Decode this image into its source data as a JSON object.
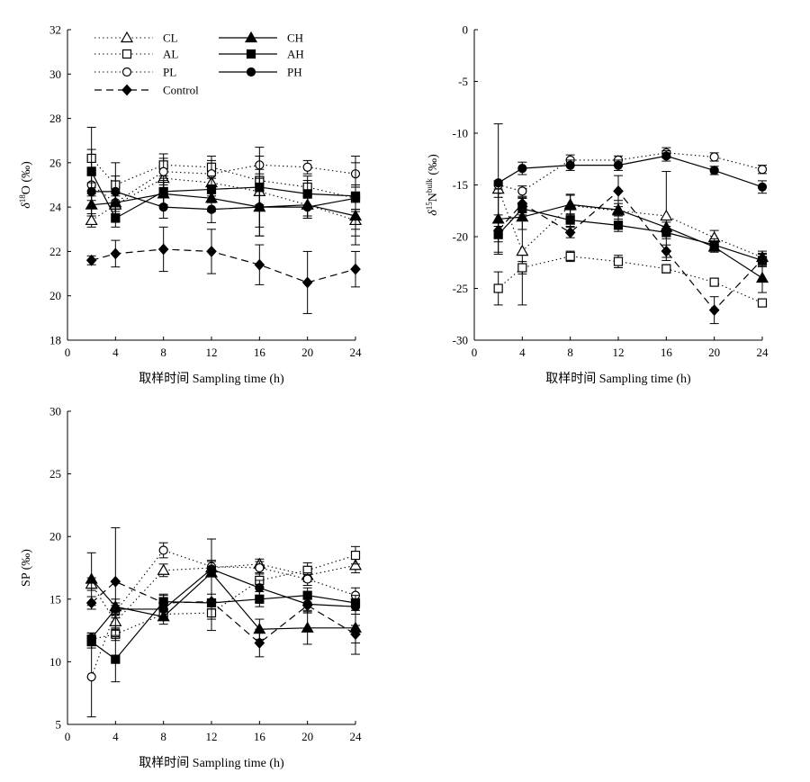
{
  "chart_data": [
    {
      "type": "line",
      "panel": "top-left",
      "ylabel": "δ18O (‰)",
      "xlabel": "取样时间 Sampling time (h)",
      "xlim": [
        0,
        24
      ],
      "ylim": [
        18,
        32
      ],
      "xticks": [
        0,
        4,
        8,
        12,
        16,
        20,
        24
      ],
      "yticks": [
        18,
        20,
        22,
        24,
        26,
        28,
        30,
        32
      ],
      "legend": {
        "placement": "top-left",
        "entries": [
          "CL",
          "AL",
          "PL",
          "Control",
          "CH",
          "AH",
          "PH"
        ]
      },
      "series": [
        {
          "name": "CL",
          "style": "dotted",
          "marker": "triangle-open",
          "x": [
            2,
            4,
            8,
            12,
            16,
            20,
            24
          ],
          "y": [
            23.4,
            24.1,
            25.3,
            25.1,
            24.7,
            24.1,
            23.4
          ],
          "err": [
            0.3,
            0.4,
            0.5,
            0.5,
            0.6,
            0.5,
            0.4
          ]
        },
        {
          "name": "AL",
          "style": "dotted",
          "marker": "square-open",
          "x": [
            2,
            4,
            8,
            12,
            16,
            20,
            24
          ],
          "y": [
            26.2,
            25.0,
            25.9,
            25.8,
            25.2,
            24.9,
            24.4
          ],
          "err": [
            0.4,
            0.4,
            0.5,
            0.5,
            0.5,
            0.5,
            0.5
          ]
        },
        {
          "name": "PL",
          "style": "dotted",
          "marker": "circle-open",
          "x": [
            2,
            4,
            8,
            12,
            16,
            20,
            24
          ],
          "y": [
            25.0,
            24.2,
            25.6,
            25.5,
            25.9,
            25.8,
            25.5
          ],
          "err": [
            0.5,
            0.5,
            0.6,
            0.6,
            0.4,
            0.3,
            0.5
          ]
        },
        {
          "name": "Control",
          "style": "dashed",
          "marker": "diamond-filled",
          "x": [
            2,
            4,
            8,
            12,
            16,
            20,
            24
          ],
          "y": [
            21.6,
            21.9,
            22.1,
            22.0,
            21.4,
            20.6,
            21.2
          ],
          "err": [
            0.2,
            0.6,
            1.0,
            1.0,
            0.9,
            1.4,
            0.8
          ]
        },
        {
          "name": "CH",
          "style": "solid",
          "marker": "triangle-filled",
          "x": [
            2,
            4,
            8,
            12,
            16,
            20,
            24
          ],
          "y": [
            24.1,
            24.2,
            24.6,
            24.4,
            24.0,
            24.1,
            23.6
          ],
          "err": [
            0.5,
            0.4,
            0.6,
            0.6,
            1.3,
            0.6,
            1.3
          ]
        },
        {
          "name": "AH",
          "style": "solid",
          "marker": "square-filled",
          "x": [
            2,
            4,
            8,
            12,
            16,
            20,
            24
          ],
          "y": [
            25.6,
            23.5,
            24.7,
            24.8,
            24.9,
            24.6,
            24.5
          ],
          "err": [
            2.0,
            0.4,
            0.6,
            0.6,
            1.8,
            0.6,
            1.8
          ]
        },
        {
          "name": "PH",
          "style": "solid",
          "marker": "circle-filled",
          "x": [
            2,
            4,
            8,
            12,
            16,
            20,
            24
          ],
          "y": [
            24.7,
            24.7,
            24.0,
            23.9,
            24.0,
            24.0,
            24.4
          ],
          "err": [
            0.4,
            1.3,
            0.5,
            0.6,
            1.3,
            0.5,
            0.5
          ]
        }
      ]
    },
    {
      "type": "line",
      "panel": "top-right",
      "ylabel": "δ15Nbulk (‰)",
      "xlabel": "取样时间 Sampling time (h)",
      "xlim": [
        0,
        24
      ],
      "ylim": [
        -30,
        0
      ],
      "xticks": [
        0,
        4,
        8,
        12,
        16,
        20,
        24
      ],
      "yticks": [
        -30,
        -25,
        -20,
        -15,
        -10,
        -5,
        0
      ],
      "series": [
        {
          "name": "CL",
          "style": "dotted",
          "marker": "triangle-open",
          "x": [
            2,
            4,
            8,
            12,
            16,
            20,
            24
          ],
          "y": [
            -15.4,
            -21.4,
            -17.0,
            -17.5,
            -18.0,
            -20.1,
            -22.0
          ],
          "err": [
            0.8,
            5.2,
            1.0,
            1.0,
            4.3,
            0.7,
            0.6
          ]
        },
        {
          "name": "AL",
          "style": "dotted",
          "marker": "square-open",
          "x": [
            2,
            4,
            8,
            12,
            16,
            20,
            24
          ],
          "y": [
            -25.0,
            -23.0,
            -21.9,
            -22.4,
            -23.1,
            -24.4,
            -26.4
          ],
          "err": [
            1.6,
            0.6,
            0.5,
            0.6,
            0.4,
            0.3,
            0.3
          ]
        },
        {
          "name": "PL",
          "style": "dotted",
          "marker": "circle-open",
          "x": [
            2,
            4,
            8,
            12,
            16,
            20,
            24
          ],
          "y": [
            -15.0,
            -15.6,
            -12.6,
            -12.6,
            -11.9,
            -12.3,
            -13.5
          ],
          "err": [
            0.4,
            0.5,
            0.5,
            0.4,
            0.5,
            0.4,
            0.4
          ]
        },
        {
          "name": "Control",
          "style": "dashed",
          "marker": "diamond-filled",
          "x": [
            2,
            4,
            8,
            12,
            16,
            20,
            24
          ],
          "y": [
            -19.4,
            -16.8,
            -19.6,
            -15.6,
            -21.4,
            -27.1,
            -22.2
          ],
          "err": [
            0.4,
            0.5,
            0.5,
            1.5,
            0.6,
            1.3,
            0.6
          ]
        },
        {
          "name": "CH",
          "style": "solid",
          "marker": "triangle-filled",
          "x": [
            2,
            4,
            8,
            12,
            16,
            20,
            24
          ],
          "y": [
            -18.3,
            -18.1,
            -16.9,
            -17.4,
            -19.1,
            -21.0,
            -24.0
          ],
          "err": [
            3.2,
            1.2,
            1.0,
            0.6,
            0.5,
            0.5,
            1.4
          ]
        },
        {
          "name": "AH",
          "style": "solid",
          "marker": "square-filled",
          "x": [
            2,
            4,
            8,
            12,
            16,
            20,
            24
          ],
          "y": [
            -19.8,
            -17.3,
            -18.4,
            -18.9,
            -19.6,
            -20.8,
            -22.3
          ],
          "err": [
            1.9,
            0.6,
            0.6,
            0.6,
            0.6,
            0.6,
            0.6
          ]
        },
        {
          "name": "PH",
          "style": "solid",
          "marker": "circle-filled",
          "x": [
            2,
            4,
            8,
            12,
            16,
            20,
            24
          ],
          "y": [
            -14.8,
            -13.4,
            -13.1,
            -13.1,
            -12.2,
            -13.6,
            -15.2
          ],
          "err": [
            5.7,
            0.6,
            0.5,
            0.5,
            0.5,
            0.4,
            0.6
          ]
        }
      ]
    },
    {
      "type": "line",
      "panel": "bottom-left",
      "ylabel": "SP (‰)",
      "xlabel": "取样时间 Sampling time (h)",
      "xlim": [
        0,
        24
      ],
      "ylim": [
        5,
        30
      ],
      "xticks": [
        0,
        4,
        8,
        12,
        16,
        20,
        24
      ],
      "yticks": [
        5,
        10,
        15,
        20,
        25,
        30
      ],
      "series": [
        {
          "name": "CL",
          "style": "dotted",
          "marker": "triangle-open",
          "x": [
            2,
            4,
            8,
            12,
            16,
            20,
            24
          ],
          "y": [
            16.2,
            13.2,
            17.3,
            17.5,
            17.8,
            16.9,
            17.7
          ],
          "err": [
            0.5,
            0.6,
            0.5,
            0.5,
            0.4,
            0.5,
            0.6
          ]
        },
        {
          "name": "AL",
          "style": "dotted",
          "marker": "square-open",
          "x": [
            2,
            4,
            8,
            12,
            16,
            20,
            24
          ],
          "y": [
            11.8,
            12.2,
            13.8,
            13.9,
            16.5,
            17.3,
            18.5
          ],
          "err": [
            0.5,
            0.5,
            0.5,
            0.5,
            0.6,
            0.6,
            0.7
          ]
        },
        {
          "name": "PL",
          "style": "dotted",
          "marker": "circle-open",
          "x": [
            2,
            4,
            8,
            12,
            16,
            20,
            24
          ],
          "y": [
            8.8,
            14.0,
            18.9,
            17.6,
            17.5,
            16.6,
            15.3
          ],
          "err": [
            3.2,
            0.5,
            0.6,
            0.5,
            0.5,
            0.5,
            0.6
          ]
        },
        {
          "name": "Control",
          "style": "dashed",
          "marker": "diamond-filled",
          "x": [
            2,
            4,
            8,
            12,
            16,
            20,
            24
          ],
          "y": [
            14.7,
            16.4,
            14.7,
            14.8,
            11.5,
            14.5,
            12.2
          ],
          "err": [
            0.5,
            4.3,
            0.6,
            0.6,
            1.1,
            0.6,
            0.7
          ]
        },
        {
          "name": "CH",
          "style": "solid",
          "marker": "triangle-filled",
          "x": [
            2,
            4,
            8,
            12,
            16,
            20,
            24
          ],
          "y": [
            16.6,
            14.4,
            13.6,
            17.1,
            12.6,
            12.7,
            12.7
          ],
          "err": [
            2.1,
            0.6,
            0.6,
            2.7,
            0.8,
            1.3,
            2.1
          ]
        },
        {
          "name": "AH",
          "style": "solid",
          "marker": "square-filled",
          "x": [
            2,
            4,
            8,
            12,
            16,
            20,
            24
          ],
          "y": [
            11.6,
            10.2,
            14.8,
            14.7,
            15.0,
            15.3,
            14.7
          ],
          "err": [
            0.5,
            1.8,
            0.6,
            2.2,
            0.6,
            0.6,
            0.6
          ]
        },
        {
          "name": "PH",
          "style": "solid",
          "marker": "circle-filled",
          "x": [
            2,
            4,
            8,
            12,
            16,
            20,
            24
          ],
          "y": [
            11.9,
            14.2,
            14.2,
            17.4,
            15.9,
            14.6,
            14.4
          ],
          "err": [
            0.4,
            0.5,
            0.6,
            2.4,
            0.6,
            0.5,
            0.6
          ]
        }
      ]
    }
  ]
}
